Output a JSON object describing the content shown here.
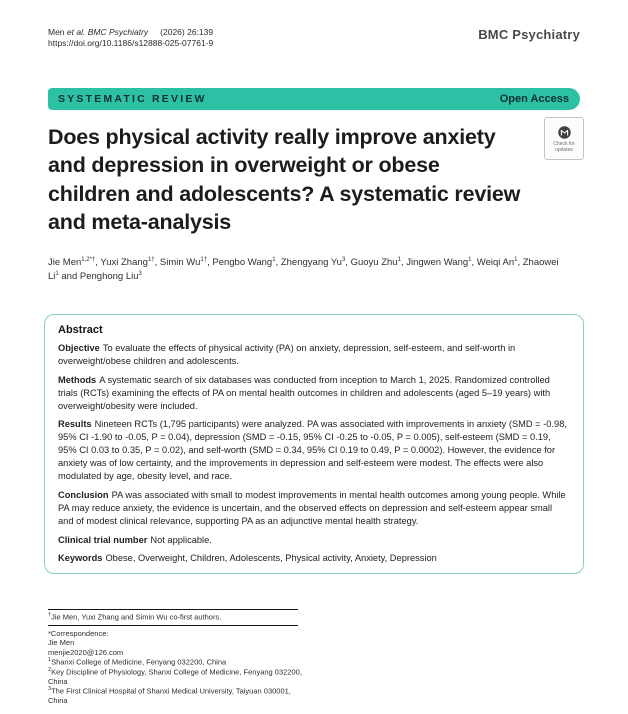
{
  "header": {
    "citation_authors": "Men",
    "citation_journal": "et al. BMC Psychiatry",
    "citation_issue": "(2026) 26:139",
    "doi": "https://doi.org/10.1186/s12888-025-07761-9",
    "journal_name": "BMC Psychiatry"
  },
  "banner": {
    "article_type": "SYSTEMATIC REVIEW",
    "access": "Open Access",
    "background_color": "#2cc0a5",
    "text_color": "#0c302b"
  },
  "update_badge": {
    "line1": "Check for",
    "line2": "updates"
  },
  "article": {
    "title": "Does physical activity really improve anxiety\nand depression in overweight or obese\nchildren and adolescents? A systematic review\nand meta-analysis",
    "authors": [
      {
        "name": "Jie Men",
        "sup": "1,2*†"
      },
      {
        "name": "Yuxi Zhang",
        "sup": "1†"
      },
      {
        "name": "Simin Wu",
        "sup": "1†"
      },
      {
        "name": "Pengbo Wang",
        "sup": "1"
      },
      {
        "name": "Zhengyang Yu",
        "sup": "3"
      },
      {
        "name": "Guoyu Zhu",
        "sup": "1"
      },
      {
        "name": "Jingwen Wang",
        "sup": "1"
      },
      {
        "name": "Weiqi An",
        "sup": "1"
      },
      {
        "name": "Zhaowei Li",
        "sup": "1"
      },
      {
        "name": "Penghong Liu",
        "sup": "3"
      }
    ]
  },
  "abstract": {
    "heading": "Abstract",
    "sections": [
      {
        "label": "Objective",
        "text": "To evaluate the effects of physical activity (PA) on anxiety, depression, self-esteem, and self-worth in overweight/obese children and adolescents."
      },
      {
        "label": "Methods",
        "text": "A systematic search of six databases was conducted from inception to March 1, 2025. Randomized controlled trials (RCTs) examining the effects of PA on mental health outcomes in children and adolescents (aged 5–19 years) with overweight/obesity were included."
      },
      {
        "label": "Results",
        "text": "Nineteen RCTs (1,795 participants) were analyzed. PA was associated with improvements in anxiety (SMD = -0.98, 95% CI -1.90 to -0.05, P = 0.04), depression (SMD = -0.15, 95% CI -0.25 to -0.05, P = 0.005), self-esteem (SMD = 0.19, 95% CI 0.03 to 0.35, P = 0.02), and self-worth (SMD = 0.34, 95% CI 0.19 to 0.49, P = 0.0002). However, the evidence for anxiety was of low certainty, and the improvements in depression and self-esteem were modest. The effects were also modulated by age, obesity level, and race."
      },
      {
        "label": "Conclusion",
        "text": "PA was associated with small to modest improvements in mental health outcomes among young people. While PA may reduce anxiety, the evidence is uncertain, and the observed effects on depression and self-esteem appear small and of modest clinical relevance, supporting PA as an adjunctive mental health strategy."
      },
      {
        "label": "Clinical trial number",
        "text": "Not applicable."
      },
      {
        "label": "Keywords",
        "text": "Obese, Overweight, Children, Adolescents, Physical activity, Anxiety, Depression"
      }
    ]
  },
  "footnotes": {
    "coauthor_sup": "†",
    "coauthor_text": "Jie Men, Yuxi Zhang and Simin Wu co-first authors.",
    "correspondence_label": "*Correspondence:",
    "correspondence_name": "Jie Men",
    "correspondence_email": "menjie2020@126.com",
    "affiliations": [
      {
        "sup": "1",
        "text": "Shanxi College of Medicine, Fenyang 032200, China"
      },
      {
        "sup": "2",
        "text": "Key Discipline of Physiology, Shanxi College of Medicine, Fenyang 032200, China"
      },
      {
        "sup": "3",
        "text": "The First Clinical Hospital of Shanxi Medical University, Taiyuan 030001, China"
      }
    ]
  }
}
